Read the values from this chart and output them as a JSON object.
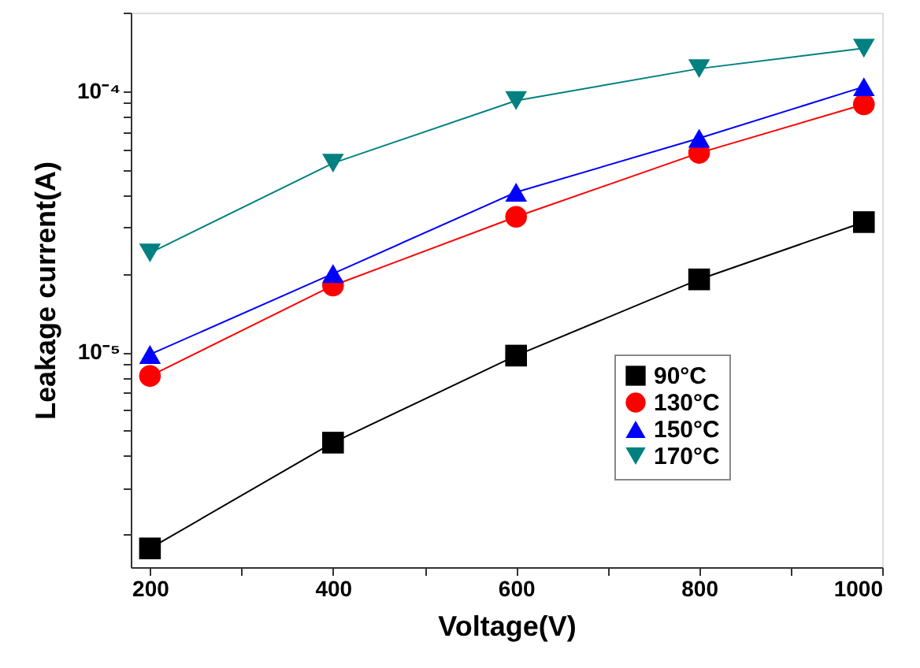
{
  "chart_data": {
    "type": "line",
    "xlabel": "Voltage(V)",
    "ylabel": "Leakage current(A)",
    "x": [
      200,
      400,
      600,
      800,
      980
    ],
    "series": [
      {
        "name": "90°C",
        "color": "#000000",
        "marker": "square",
        "values": [
          1.77e-06,
          4.5e-06,
          9.7e-06,
          1.9e-05,
          3.15e-05
        ]
      },
      {
        "name": "130°C",
        "color": "#ff0000",
        "marker": "circle",
        "values": [
          8.1e-06,
          1.8e-05,
          3.3e-05,
          5.8e-05,
          8.9e-05
        ]
      },
      {
        "name": "150°C",
        "color": "#0000ff",
        "marker": "triangle",
        "values": [
          9.8e-06,
          2e-05,
          4.1e-05,
          6.6e-05,
          0.000104
        ]
      },
      {
        "name": "170°C",
        "color": "#008080",
        "marker": "triangle-down",
        "values": [
          2.4e-05,
          5.3e-05,
          9.2e-05,
          0.000122,
          0.000146
        ]
      }
    ],
    "log": "y",
    "xlim": [
      179,
      1000
    ],
    "ylim": [
      1.5e-06,
      0.0002
    ],
    "xticks": [
      200,
      {
        "value": 300,
        "label": null
      },
      400,
      {
        "value": 500,
        "label": null
      },
      600,
      {
        "value": 700,
        "label": null
      },
      800,
      {
        "value": 900,
        "label": null
      },
      1000
    ],
    "yticks": [
      {
        "value": 2e-06,
        "label": null
      },
      {
        "value": 3e-06,
        "label": null
      },
      {
        "value": 4e-06,
        "label": null
      },
      {
        "value": 5e-06,
        "label": null
      },
      {
        "value": 6e-06,
        "label": null
      },
      {
        "value": 7e-06,
        "label": null
      },
      {
        "value": 8e-06,
        "label": null
      },
      {
        "value": 9e-06,
        "label": null
      },
      {
        "value": 1e-05,
        "label": "10⁻⁵"
      },
      {
        "value": 2e-05,
        "label": null
      },
      {
        "value": 3e-05,
        "label": null
      },
      {
        "value": 4e-05,
        "label": null
      },
      {
        "value": 5e-05,
        "label": null
      },
      {
        "value": 6e-05,
        "label": null
      },
      {
        "value": 7e-05,
        "label": null
      },
      {
        "value": 8e-05,
        "label": null
      },
      {
        "value": 9e-05,
        "label": null
      },
      {
        "value": 0.0001,
        "label": "10⁻⁴"
      },
      {
        "value": 0.0002,
        "label": null
      }
    ],
    "grid": false,
    "legend": "bottom right",
    "line_style": "solid"
  }
}
